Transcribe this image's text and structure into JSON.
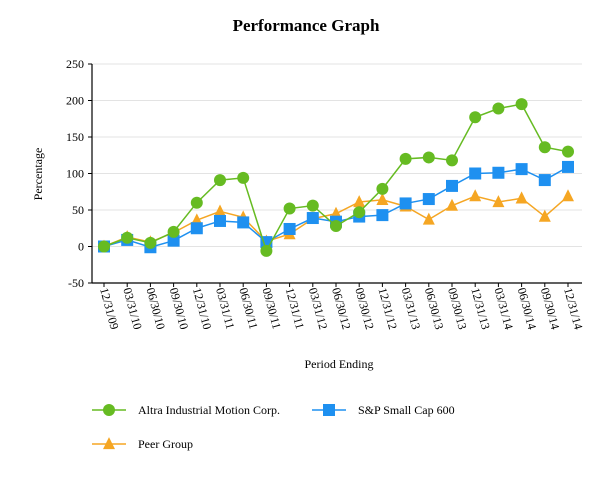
{
  "chart_data": {
    "type": "line",
    "title": "Performance Graph",
    "xlabel": "Period Ending",
    "ylabel": "Percentage",
    "ylim": [
      -50,
      250
    ],
    "yticks": [
      -50,
      0,
      50,
      100,
      150,
      200,
      250
    ],
    "grid": true,
    "legend_position": "bottom",
    "categories": [
      "12/31/09",
      "03/31/10",
      "06/30/10",
      "09/30/10",
      "12/31/10",
      "03/31/11",
      "06/30/11",
      "09/30/11",
      "12/31/11",
      "03/31/12",
      "06/30/12",
      "09/30/12",
      "12/31/12",
      "03/31/13",
      "06/30/13",
      "09/30/13",
      "12/31/13",
      "03/31/14",
      "06/30/14",
      "09/30/14",
      "12/31/14"
    ],
    "series": [
      {
        "name": "Altra Industrial Motion Corp.",
        "color": "#66bb22",
        "marker": "circle",
        "values": [
          0,
          12,
          5,
          20,
          60,
          91,
          94,
          -6,
          52,
          56,
          28,
          47,
          79,
          120,
          122,
          118,
          177,
          189,
          195,
          136,
          130
        ]
      },
      {
        "name": "S&P Small Cap 600",
        "color": "#1e90f0",
        "marker": "square",
        "values": [
          0,
          9,
          -1,
          8,
          25,
          35,
          33,
          6,
          24,
          39,
          34,
          41,
          43,
          59,
          65,
          83,
          100,
          101,
          106,
          91,
          109
        ]
      },
      {
        "name": "Peer Group",
        "color": "#f5a623",
        "marker": "triangle",
        "values": [
          0,
          13,
          6,
          19,
          36,
          48,
          40,
          7,
          17,
          38,
          45,
          61,
          64,
          55,
          37,
          56,
          69,
          61,
          66,
          41,
          69
        ]
      }
    ]
  }
}
